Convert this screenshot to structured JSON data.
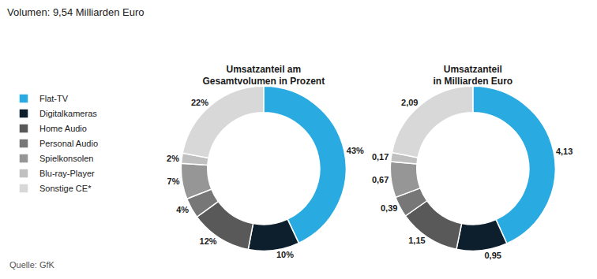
{
  "title": "Volumen: 9,54 Milliarden Euro",
  "annotations": [
    "Quelle: GfK"
  ],
  "chart_data": [
    {
      "type": "donut",
      "title": "Umsatzanteil am\nGesamtvolumen in Prozent",
      "categories": [
        "Flat-TV",
        "Digitalkameras",
        "Home Audio",
        "Personal Audio",
        "Spielkonsolen",
        "Blu-ray-Player",
        "Sonstige CE*"
      ],
      "values": [
        43,
        10,
        12,
        4,
        7,
        2,
        22
      ],
      "value_labels": [
        "43%",
        "10%",
        "12%",
        "4%",
        "7%",
        "2%",
        "22%"
      ],
      "colors": [
        "#29ABE2",
        "#0D1F2D",
        "#595959",
        "#777777",
        "#969696",
        "#C0C0C0",
        "#D8D8D8"
      ],
      "data_labels": true,
      "legend": "left"
    },
    {
      "type": "donut",
      "title": "Umsatzanteil\nin Milliarden Euro",
      "categories": [
        "Flat-TV",
        "Digitalkameras",
        "Home Audio",
        "Personal Audio",
        "Spielkonsolen",
        "Blu-ray-Player",
        "Sonstige CE*"
      ],
      "values": [
        4.13,
        0.95,
        1.15,
        0.39,
        0.67,
        0.17,
        2.09
      ],
      "value_labels": [
        "4,13",
        "0,95",
        "1,15",
        "0,39",
        "0,67",
        "0,17",
        "2,09"
      ],
      "colors": [
        "#29ABE2",
        "#0D1F2D",
        "#595959",
        "#777777",
        "#969696",
        "#C0C0C0",
        "#D8D8D8"
      ],
      "data_labels": true
    }
  ]
}
